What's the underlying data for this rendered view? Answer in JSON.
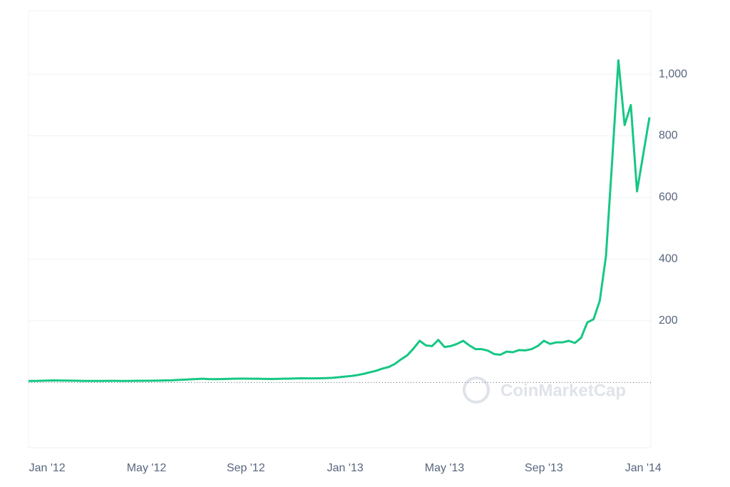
{
  "chart_data": {
    "type": "line",
    "watermark": "CoinMarketCap",
    "categories": [
      null,
      null,
      null,
      "Jan '12",
      null,
      null,
      null,
      null,
      null,
      null,
      null,
      null,
      null,
      null,
      null,
      null,
      null,
      null,
      null,
      "May '12",
      null,
      null,
      null,
      null,
      null,
      null,
      null,
      null,
      null,
      null,
      null,
      null,
      null,
      null,
      null,
      "Sep '12",
      null,
      null,
      null,
      null,
      null,
      null,
      null,
      null,
      null,
      null,
      null,
      null,
      null,
      null,
      null,
      "Jan '13",
      null,
      null,
      null,
      null,
      null,
      null,
      null,
      null,
      null,
      null,
      null,
      null,
      null,
      null,
      null,
      "May '13",
      null,
      null,
      null,
      null,
      null,
      null,
      null,
      null,
      null,
      null,
      null,
      null,
      null,
      null,
      null,
      "Sep '13",
      null,
      null,
      null,
      null,
      null,
      null,
      null,
      null,
      null,
      null,
      null,
      null,
      null,
      null,
      null,
      "Jan '14",
      null
    ],
    "series": [
      {
        "color": "#16c784",
        "values": [
          5,
          5,
          5.5,
          6,
          6.5,
          6.3,
          6,
          5.8,
          5.5,
          5,
          5,
          5,
          5,
          5.2,
          5.1,
          5,
          5,
          5.2,
          5.3,
          5.5,
          5.7,
          6,
          6.5,
          7,
          8,
          9,
          10,
          11,
          12,
          11,
          10.5,
          11,
          11.5,
          12,
          12.5,
          12.3,
          12,
          12,
          11.5,
          11.3,
          11.5,
          12,
          12.5,
          13,
          13.5,
          13.3,
          13.2,
          13.5,
          14,
          15,
          17,
          19,
          21,
          24,
          28,
          33,
          38,
          45,
          50,
          60,
          75,
          88,
          110,
          135,
          120,
          118,
          138,
          115,
          118,
          125,
          135,
          120,
          108,
          108,
          103,
          92,
          90,
          100,
          98,
          105,
          104,
          108,
          118,
          135,
          125,
          130,
          130,
          135,
          128,
          145,
          195,
          205,
          265,
          410,
          720,
          1045,
          835,
          900,
          620,
          740,
          860
        ]
      }
    ],
    "ylim": [
      -212,
      1206
    ],
    "yticks": [
      200,
      400,
      600,
      {
        "value": 800,
        "label": "800"
      },
      {
        "value": 1000,
        "label": "1,000"
      }
    ],
    "grid": true
  }
}
